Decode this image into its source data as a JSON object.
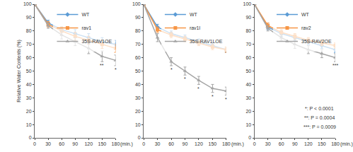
{
  "chart_data": [
    {
      "type": "line",
      "ylabel": "Relative Water Contents (%)",
      "xlabel": "(min.)",
      "x": [
        0,
        30,
        60,
        90,
        120,
        150,
        180
      ],
      "xlim": [
        0,
        180
      ],
      "xticks": [
        0,
        30,
        60,
        90,
        120,
        150,
        180
      ],
      "ylim": [
        0,
        100
      ],
      "yticks": [
        0,
        10,
        20,
        30,
        40,
        50,
        60,
        70,
        80,
        90,
        100
      ],
      "grid": false,
      "legend": "upper right",
      "series": [
        {
          "name": "WT",
          "color": "#5b9bd5",
          "marker": "diamond",
          "line_style": "solid",
          "values": [
            100,
            86,
            81,
            78,
            75,
            72,
            70
          ],
          "errors": [
            0,
            2,
            2,
            3,
            3,
            3,
            3
          ]
        },
        {
          "name": "rav1",
          "color": "#f79646",
          "marker": "square",
          "line_style": "solid",
          "values": [
            100,
            85,
            80,
            76,
            73,
            70,
            67
          ],
          "errors": [
            0,
            2,
            3,
            3,
            3,
            3,
            3
          ]
        },
        {
          "name": "35S-RAV1OE",
          "color": "#a5a5a5",
          "marker": "triangle-up",
          "line_style": "solid",
          "values": [
            100,
            84,
            77,
            72,
            67,
            61,
            58
          ],
          "errors": [
            0,
            2,
            3,
            3,
            4,
            4,
            4
          ]
        }
      ],
      "annotations": [
        {
          "text": "**",
          "x": 150,
          "y": 54
        },
        {
          "text": "*",
          "x": 180,
          "y": 51
        }
      ]
    },
    {
      "type": "line",
      "xlabel": "(min.)",
      "x": [
        0,
        30,
        60,
        90,
        120,
        150,
        180
      ],
      "xlim": [
        0,
        180
      ],
      "xticks": [
        0,
        30,
        60,
        90,
        120,
        150,
        180
      ],
      "ylim": [
        0,
        100
      ],
      "yticks": [
        0,
        10,
        20,
        30,
        40,
        50,
        60,
        70,
        80,
        90,
        100
      ],
      "grid": false,
      "legend": "upper right",
      "series": [
        {
          "name": "WT",
          "color": "#5b9bd5",
          "marker": "diamond",
          "line_style": "solid",
          "values": [
            100,
            83,
            78,
            75,
            72,
            69,
            66
          ],
          "errors": [
            0,
            2,
            2,
            2,
            2,
            2,
            2
          ]
        },
        {
          "name": "rav1l",
          "color": "#f79646",
          "marker": "square",
          "line_style": "solid",
          "values": [
            100,
            81,
            77,
            74,
            71,
            68,
            66
          ],
          "errors": [
            0,
            2,
            2,
            2,
            2,
            2,
            2
          ]
        },
        {
          "name": "35S-RAV1LOE",
          "color": "#a5a5a5",
          "marker": "triangle-up",
          "line_style": "solid",
          "values": [
            100,
            75,
            57,
            50,
            43,
            37,
            35
          ],
          "errors": [
            0,
            3,
            3,
            3,
            3,
            3,
            3
          ]
        }
      ],
      "annotations": [
        {
          "text": "*",
          "x": 60,
          "y": 51
        },
        {
          "text": "*",
          "x": 90,
          "y": 44
        },
        {
          "text": "*",
          "x": 120,
          "y": 37
        },
        {
          "text": "*",
          "x": 150,
          "y": 31
        },
        {
          "text": "*",
          "x": 180,
          "y": 29
        }
      ]
    },
    {
      "type": "line",
      "xlabel": "(min.)",
      "x": [
        0,
        30,
        60,
        90,
        120,
        150,
        180
      ],
      "xlim": [
        0,
        180
      ],
      "xticks": [
        0,
        30,
        60,
        90,
        120,
        150,
        180
      ],
      "ylim": [
        0,
        100
      ],
      "yticks": [
        0,
        10,
        20,
        30,
        40,
        50,
        60,
        70,
        80,
        90,
        100
      ],
      "grid": false,
      "legend": "upper right",
      "series": [
        {
          "name": "WT",
          "color": "#5b9bd5",
          "marker": "diamond",
          "line_style": "solid",
          "values": [
            100,
            83,
            78,
            75,
            72,
            69,
            66
          ],
          "errors": [
            0,
            2,
            2,
            2,
            2,
            2,
            2
          ]
        },
        {
          "name": "rav2",
          "color": "#f79646",
          "marker": "square",
          "line_style": "solid",
          "values": [
            100,
            84,
            79,
            76,
            73,
            71,
            69
          ],
          "errors": [
            0,
            2,
            2,
            2,
            2,
            2,
            2
          ]
        },
        {
          "name": "35S-RAV2OE",
          "color": "#a5a5a5",
          "marker": "triangle-up",
          "line_style": "solid",
          "values": [
            100,
            82,
            75,
            70,
            66,
            63,
            60
          ],
          "errors": [
            0,
            2,
            2,
            3,
            3,
            3,
            3
          ]
        }
      ],
      "annotations": [
        {
          "text": "***",
          "x": 180,
          "y": 54
        },
        {
          "text": "*: P < 0.0001",
          "x": 145,
          "y": 22
        },
        {
          "text": "**: P = 0.0004",
          "x": 145,
          "y": 15
        },
        {
          "text": "***: P = 0.0009",
          "x": 145,
          "y": 8
        }
      ]
    }
  ]
}
